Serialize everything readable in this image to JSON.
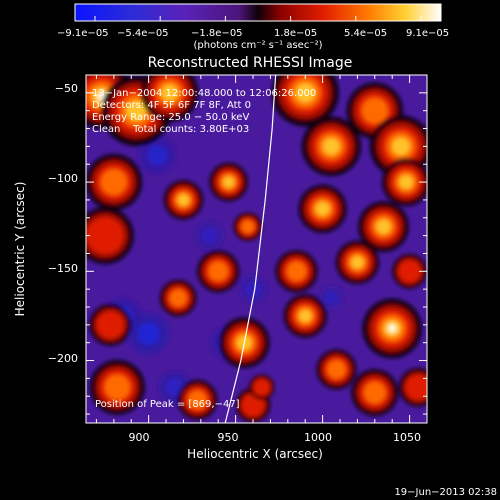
{
  "chart_data": {
    "type": "heatmap",
    "title": "Reconstructed RHESSI Image",
    "xlabel": "Heliocentric X (arcsec)",
    "ylabel": "Heliocentric Y (arcsec)",
    "xlim": [
      864,
      1060
    ],
    "ylim": [
      -235,
      -40
    ],
    "x_ticks": [
      900,
      950,
      1000,
      1050
    ],
    "y_ticks": [
      -50,
      -100,
      -150,
      -200
    ],
    "x_tick_labels": [
      "900",
      "950",
      "1000",
      "1050"
    ],
    "y_tick_labels": [
      "−50",
      "−100",
      "−150",
      "−200"
    ],
    "colorbar": {
      "min": -9.1e-05,
      "max": 9.1e-05,
      "tick_labels": [
        "−9.1e−05",
        "−5.4e−05",
        "−1.8e−05",
        "1.8e−05",
        "5.4e−05",
        "9.1e−05"
      ],
      "units_label": "(photons cm⁻² s⁻¹ asec⁻²)"
    },
    "annotations": [
      "13−Jan−2004 12:00:48.000 to 12:06:26.000",
      "Detectors: 4F 5F 6F 7F 8F, Att 0",
      "Energy Range: 25.0 − 50.0 keV",
      "Clean    Total counts: 3.80E+03"
    ],
    "peak_label": "Position of Peak = [869,−47]",
    "peak": [
      869,
      -47
    ],
    "limb_points": [
      [
        973,
        -40
      ],
      [
        971,
        -70
      ],
      [
        967,
        -110
      ],
      [
        961,
        -160
      ],
      [
        953,
        -200
      ],
      [
        944,
        -235
      ]
    ],
    "blobs": [
      {
        "x": 873,
        "y": -52,
        "s": 12,
        "a": 1.0
      },
      {
        "x": 893,
        "y": -60,
        "s": 14,
        "a": 0.85
      },
      {
        "x": 912,
        "y": -50,
        "s": 12,
        "a": 0.75
      },
      {
        "x": 880,
        "y": -100,
        "s": 12,
        "a": 0.7
      },
      {
        "x": 875,
        "y": -130,
        "s": 14,
        "a": 0.45
      },
      {
        "x": 878,
        "y": -180,
        "s": 10,
        "a": 0.5
      },
      {
        "x": 882,
        "y": -215,
        "s": 12,
        "a": 0.65
      },
      {
        "x": 920,
        "y": -110,
        "s": 8,
        "a": 0.8
      },
      {
        "x": 946,
        "y": -100,
        "s": 8,
        "a": 0.75
      },
      {
        "x": 957,
        "y": -125,
        "s": 6,
        "a": 0.7
      },
      {
        "x": 940,
        "y": -150,
        "s": 9,
        "a": 0.7
      },
      {
        "x": 917,
        "y": -165,
        "s": 8,
        "a": 0.65
      },
      {
        "x": 955,
        "y": -190,
        "s": 10,
        "a": 0.85
      },
      {
        "x": 928,
        "y": -222,
        "s": 9,
        "a": 0.6
      },
      {
        "x": 960,
        "y": -225,
        "s": 8,
        "a": 0.55
      },
      {
        "x": 965,
        "y": -215,
        "s": 6,
        "a": 0.5
      },
      {
        "x": 990,
        "y": -50,
        "s": 14,
        "a": 0.75
      },
      {
        "x": 1030,
        "y": -60,
        "s": 12,
        "a": 0.7
      },
      {
        "x": 1005,
        "y": -80,
        "s": 12,
        "a": 0.8
      },
      {
        "x": 1045,
        "y": -80,
        "s": 12,
        "a": 0.9
      },
      {
        "x": 1000,
        "y": -115,
        "s": 10,
        "a": 0.75
      },
      {
        "x": 1035,
        "y": -125,
        "s": 10,
        "a": 0.85
      },
      {
        "x": 1048,
        "y": -100,
        "s": 10,
        "a": 0.75
      },
      {
        "x": 1020,
        "y": -145,
        "s": 9,
        "a": 0.75
      },
      {
        "x": 985,
        "y": -150,
        "s": 9,
        "a": 0.7
      },
      {
        "x": 990,
        "y": -175,
        "s": 9,
        "a": 0.75
      },
      {
        "x": 1040,
        "y": -182,
        "s": 11,
        "a": 1.0
      },
      {
        "x": 1008,
        "y": -205,
        "s": 9,
        "a": 0.6
      },
      {
        "x": 1030,
        "y": -218,
        "s": 10,
        "a": 0.7
      },
      {
        "x": 1055,
        "y": -215,
        "s": 9,
        "a": 0.55
      },
      {
        "x": 1050,
        "y": -150,
        "s": 8,
        "a": 0.55
      }
    ],
    "neg_blobs": [
      {
        "x": 905,
        "y": -85,
        "s": 9,
        "a": 0.5
      },
      {
        "x": 900,
        "y": -185,
        "s": 10,
        "a": 0.6
      },
      {
        "x": 945,
        "y": -190,
        "s": 8,
        "a": 0.45
      },
      {
        "x": 885,
        "y": -175,
        "s": 9,
        "a": 0.5
      },
      {
        "x": 935,
        "y": -130,
        "s": 7,
        "a": 0.35
      },
      {
        "x": 915,
        "y": -215,
        "s": 8,
        "a": 0.4
      },
      {
        "x": 960,
        "y": -160,
        "s": 7,
        "a": 0.35
      },
      {
        "x": 1005,
        "y": -165,
        "s": 6,
        "a": 0.3
      }
    ]
  },
  "timestamp": "19−Jun−2013 02:38"
}
